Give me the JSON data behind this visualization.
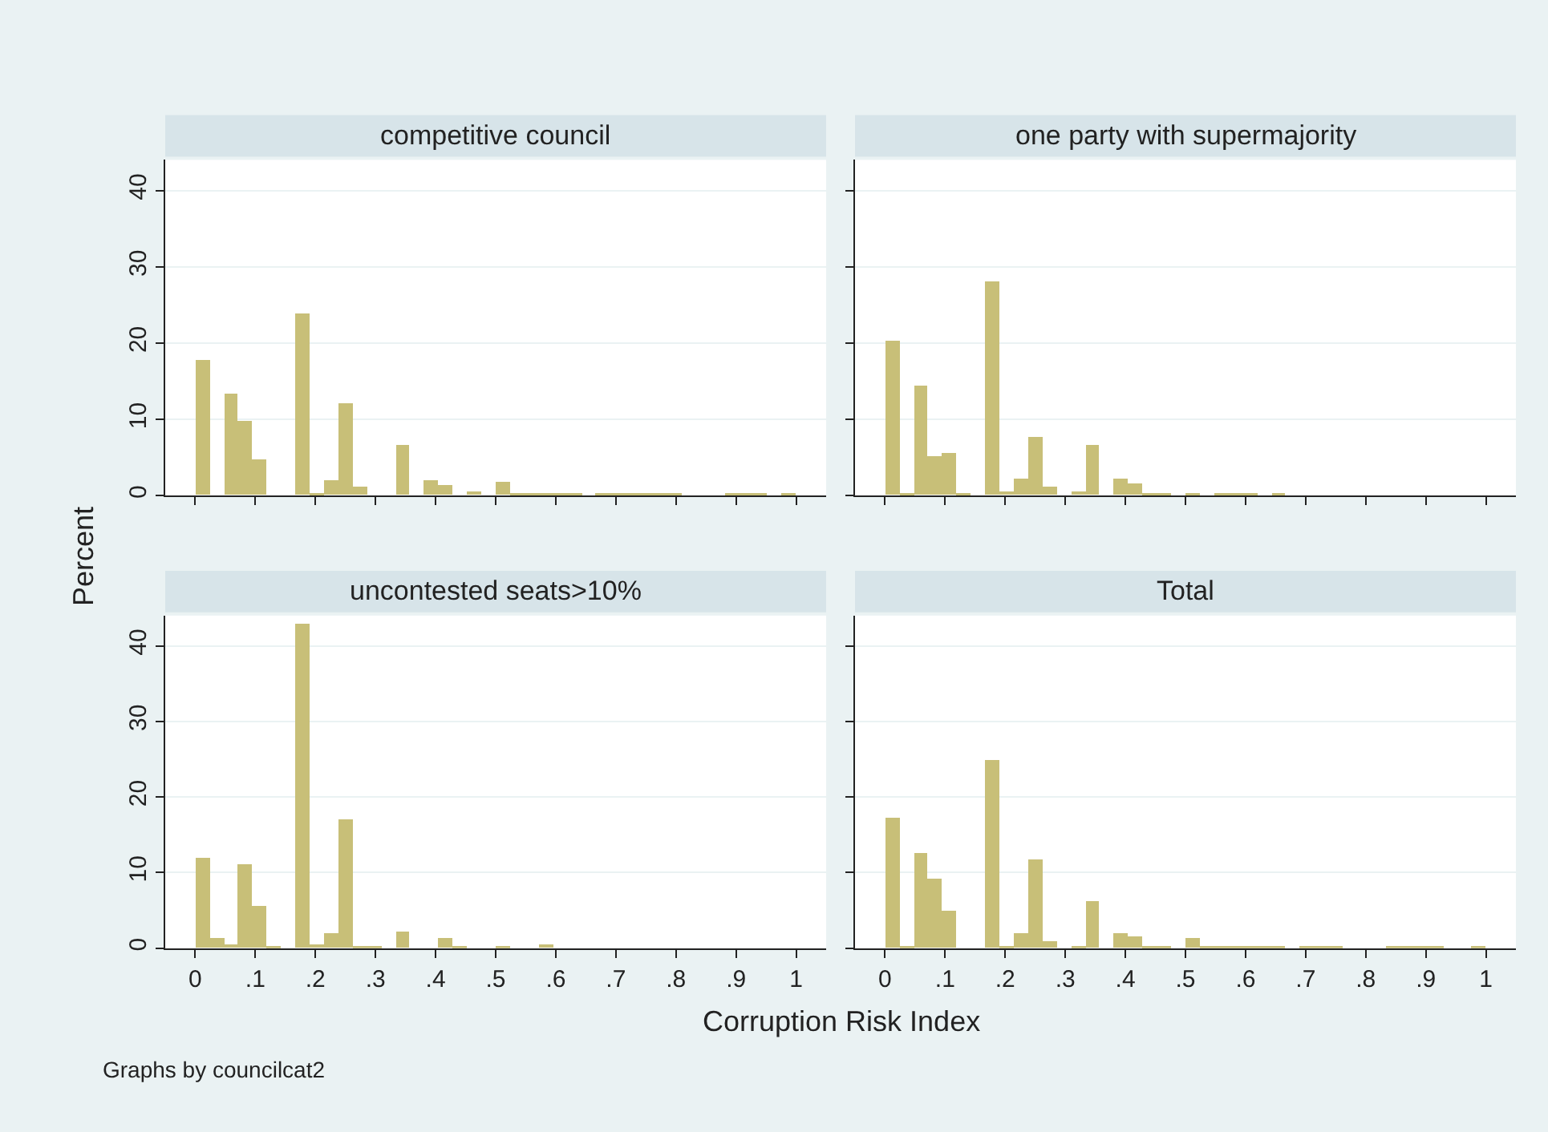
{
  "chart_data": [
    {
      "type": "histogram",
      "title": "competitive council",
      "ylabel": "Percent",
      "color": "#c8bf78",
      "tick_labels": "y",
      "grid": "y",
      "xticks": [
        {
          "value": 0,
          "label": null
        },
        {
          "value": 0.1,
          "label": null
        },
        {
          "value": 0.2,
          "label": null
        },
        {
          "value": 0.3,
          "label": null
        },
        {
          "value": 0.4,
          "label": null
        },
        {
          "value": 0.5,
          "label": null
        },
        {
          "value": 0.6,
          "label": null
        },
        {
          "value": 0.7,
          "label": null
        },
        {
          "value": 0.8,
          "label": null
        },
        {
          "value": 0.9,
          "label": null
        },
        {
          "value": 1,
          "label": null
        }
      ],
      "bins": [
        0,
        0.0238,
        0.0476,
        0.0714,
        0.0952,
        0.119,
        0.1429,
        0.1667,
        0.1905,
        0.2143,
        0.2381,
        0.2619,
        0.2857,
        0.3095,
        0.3333,
        0.3571,
        0.381,
        0.4048,
        0.4286,
        0.4524,
        0.4762,
        0.5,
        0.5238,
        0.5476,
        0.5714,
        0.5952,
        0.619,
        0.6429,
        0.6667,
        0.6905,
        0.7143,
        0.7381,
        0.7619,
        0.7857,
        0.8095,
        0.8333,
        0.8571,
        0.881,
        0.9048,
        0.9286,
        0.9524,
        0.9762,
        1
      ],
      "values": [
        17.7,
        0,
        13.3,
        9.7,
        4.7,
        0,
        0,
        23.9,
        0.3,
        1.9,
        12.0,
        1.1,
        0,
        0,
        6.6,
        0,
        1.9,
        1.4,
        0,
        0.5,
        0,
        1.7,
        0.2,
        0.2,
        0.2,
        0.2,
        0.2,
        0,
        0.2,
        0.2,
        0.2,
        0.2,
        0.2,
        0.2,
        0,
        0,
        0,
        0.2,
        0.2,
        0.2,
        0,
        0.2
      ],
      "xlim": [
        -0.05,
        1.05
      ],
      "ylim": [
        0,
        44
      ],
      "yticks": [
        0,
        10,
        20,
        30,
        40
      ]
    },
    {
      "type": "histogram",
      "title": "one party with supermajority",
      "color": "#c8bf78",
      "tick_labels": false,
      "grid": "y",
      "xticks": [
        {
          "value": 0,
          "label": null
        },
        {
          "value": 0.1,
          "label": null
        },
        {
          "value": 0.2,
          "label": null
        },
        {
          "value": 0.3,
          "label": null
        },
        {
          "value": 0.4,
          "label": null
        },
        {
          "value": 0.5,
          "label": null
        },
        {
          "value": 0.6,
          "label": null
        },
        {
          "value": 0.7,
          "label": null
        },
        {
          "value": 0.8,
          "label": null
        },
        {
          "value": 0.9,
          "label": null
        },
        {
          "value": 1,
          "label": null
        }
      ],
      "yticks": [
        {
          "value": 0,
          "label": null
        },
        {
          "value": 10,
          "label": null
        },
        {
          "value": 20,
          "label": null
        },
        {
          "value": 30,
          "label": null
        },
        {
          "value": 40,
          "label": null
        }
      ],
      "bins": [
        0,
        0.0238,
        0.0476,
        0.0714,
        0.0952,
        0.119,
        0.1429,
        0.1667,
        0.1905,
        0.2143,
        0.2381,
        0.2619,
        0.2857,
        0.3095,
        0.3333,
        0.3571,
        0.381,
        0.4048,
        0.4286,
        0.4524,
        0.4762,
        0.5,
        0.5238,
        0.5476,
        0.5714,
        0.5952,
        0.619,
        0.6429,
        0.6667,
        0.6905,
        0.7143,
        0.7381,
        0.7619,
        0.7857,
        0.8095,
        0.8333,
        0.8571,
        0.881,
        0.9048,
        0.9286,
        0.9524,
        0.9762,
        1
      ],
      "values": [
        20.2,
        0.4,
        14.3,
        5.2,
        5.5,
        0.2,
        0,
        28.0,
        0.5,
        2.1,
        7.6,
        1.1,
        0,
        0.5,
        6.7,
        0,
        2.1,
        1.6,
        0.1,
        0.1,
        0,
        0.4,
        0,
        0.4,
        0.2,
        0.2,
        0,
        0.3,
        0,
        0,
        0,
        0,
        0,
        0,
        0,
        0,
        0,
        0,
        0,
        0,
        0,
        0
      ],
      "xlim": [
        -0.05,
        1.05
      ],
      "ylim": [
        0,
        44
      ]
    },
    {
      "type": "histogram",
      "title": "uncontested seats>10%",
      "xlabel": "Corruption Risk Index",
      "color": "#c8bf78",
      "grid": "y",
      "annotations": [
        "Graphs by councilcat2"
      ],
      "bins": [
        0,
        0.0238,
        0.0476,
        0.0714,
        0.0952,
        0.119,
        0.1429,
        0.1667,
        0.1905,
        0.2143,
        0.2381,
        0.2619,
        0.2857,
        0.3095,
        0.3333,
        0.3571,
        0.381,
        0.4048,
        0.4286,
        0.4524,
        0.4762,
        0.5,
        0.5238,
        0.5476,
        0.5714,
        0.5952,
        0.619,
        0.6429,
        0.6667,
        0.6905,
        0.7143,
        0.7381,
        0.7619,
        0.7857,
        0.8095,
        0.8333,
        0.8571,
        0.881,
        0.9048,
        0.9286,
        0.9524,
        0.9762,
        1
      ],
      "values": [
        12.0,
        1.4,
        0.6,
        11.1,
        5.6,
        0.2,
        0,
        43.0,
        0.6,
        2.0,
        17.1,
        0.2,
        0.2,
        0,
        2.3,
        0,
        0,
        1.4,
        0.2,
        0,
        0,
        0.2,
        0,
        0,
        0.6,
        0,
        0,
        0,
        0,
        0,
        0,
        0,
        0,
        0,
        0,
        0,
        0,
        0,
        0,
        0,
        0,
        0
      ],
      "xlim": [
        -0.05,
        1.05
      ],
      "xticks": [
        0,
        {
          "value": 0.1,
          "label": ".1"
        },
        {
          "value": 0.2,
          "label": ".2"
        },
        {
          "value": 0.3,
          "label": ".3"
        },
        {
          "value": 0.4,
          "label": ".4"
        },
        {
          "value": 0.5,
          "label": ".5"
        },
        {
          "value": 0.6,
          "label": ".6"
        },
        {
          "value": 0.7,
          "label": ".7"
        },
        {
          "value": 0.8,
          "label": ".8"
        },
        {
          "value": 0.9,
          "label": ".9"
        },
        1
      ],
      "ylim": [
        0,
        44
      ],
      "yticks": [
        0,
        10,
        20,
        30,
        40
      ]
    },
    {
      "type": "histogram",
      "title": "Total",
      "color": "#c8bf78",
      "tick_labels": "x",
      "grid": "y",
      "yticks": [
        {
          "value": 0,
          "label": null
        },
        {
          "value": 10,
          "label": null
        },
        {
          "value": 20,
          "label": null
        },
        {
          "value": 30,
          "label": null
        },
        {
          "value": 40,
          "label": null
        }
      ],
      "bins": [
        0,
        0.0238,
        0.0476,
        0.0714,
        0.0952,
        0.119,
        0.1429,
        0.1667,
        0.1905,
        0.2143,
        0.2381,
        0.2619,
        0.2857,
        0.3095,
        0.3333,
        0.3571,
        0.381,
        0.4048,
        0.4286,
        0.4524,
        0.4762,
        0.5,
        0.5238,
        0.5476,
        0.5714,
        0.5952,
        0.619,
        0.6429,
        0.6667,
        0.6905,
        0.7143,
        0.7381,
        0.7619,
        0.7857,
        0.8095,
        0.8333,
        0.8571,
        0.881,
        0.9048,
        0.9286,
        0.9524,
        0.9762,
        1
      ],
      "values": [
        17.3,
        0.1,
        12.5,
        9.2,
        4.9,
        0,
        0,
        24.9,
        0.1,
        1.9,
        11.8,
        1.0,
        0,
        0.1,
        6.2,
        0,
        1.9,
        1.6,
        0.3,
        0.3,
        0,
        1.3,
        0.2,
        0.2,
        0.2,
        0.2,
        0.2,
        0.2,
        0,
        0.2,
        0.2,
        0.2,
        0,
        0,
        0,
        0.2,
        0.2,
        0.2,
        0.2,
        0,
        0,
        0.2
      ],
      "xlim": [
        -0.05,
        1.05
      ],
      "xticks": [
        0,
        {
          "value": 0.1,
          "label": ".1"
        },
        {
          "value": 0.2,
          "label": ".2"
        },
        {
          "value": 0.3,
          "label": ".3"
        },
        {
          "value": 0.4,
          "label": ".4"
        },
        {
          "value": 0.5,
          "label": ".5"
        },
        {
          "value": 0.6,
          "label": ".6"
        },
        {
          "value": 0.7,
          "label": ".7"
        },
        {
          "value": 0.8,
          "label": ".8"
        },
        {
          "value": 0.9,
          "label": ".9"
        },
        1
      ],
      "ylim": [
        0,
        44
      ]
    }
  ]
}
